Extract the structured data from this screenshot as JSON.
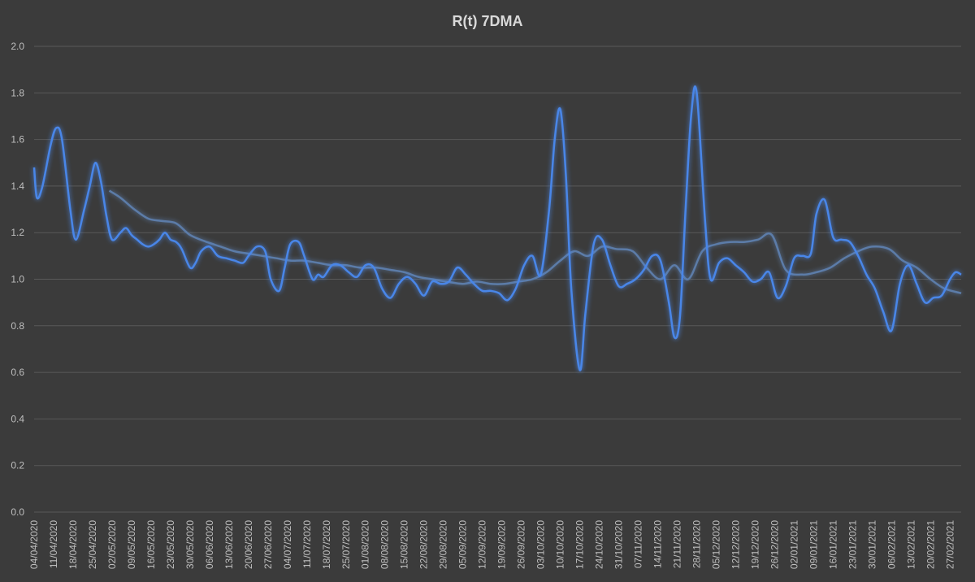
{
  "chart_data": {
    "type": "line",
    "title": "R(t) 7DMA",
    "xlabel": "",
    "ylabel": "",
    "ylim": [
      0,
      2.0
    ],
    "yticks": [
      0.0,
      0.2,
      0.4,
      0.6,
      0.8,
      1.0,
      1.2,
      1.4,
      1.6,
      1.8,
      2.0
    ],
    "ytick_labels": [
      "0.0",
      "0.2",
      "0.4",
      "0.6",
      "0.8",
      "1.0",
      "1.2",
      "1.4",
      "1.6",
      "1.8",
      "2.0"
    ],
    "grid": true,
    "x_start": "04/04/2020",
    "x_end": "03/03/2021",
    "x_tick_labels": [
      "04/04/2020",
      "11/04/2020",
      "18/04/2020",
      "25/04/2020",
      "02/05/2020",
      "09/05/2020",
      "16/05/2020",
      "23/05/2020",
      "30/05/2020",
      "06/06/2020",
      "13/06/2020",
      "20/06/2020",
      "27/06/2020",
      "04/07/2020",
      "11/07/2020",
      "18/07/2020",
      "25/07/2020",
      "01/08/2020",
      "08/08/2020",
      "15/08/2020",
      "22/08/2020",
      "29/08/2020",
      "05/09/2020",
      "12/09/2020",
      "19/09/2020",
      "26/09/2020",
      "03/10/2020",
      "10/10/2020",
      "17/10/2020",
      "24/10/2020",
      "31/10/2020",
      "07/11/2020",
      "14/11/2020",
      "21/11/2020",
      "28/11/2020",
      "05/12/2020",
      "12/12/2020",
      "19/12/2020",
      "26/12/2020",
      "02/01/2021",
      "09/01/2021",
      "16/01/2021",
      "23/01/2021",
      "30/01/2021",
      "06/02/2021",
      "13/02/2021",
      "20/02/2021",
      "27/02/2021"
    ],
    "series": [
      {
        "color": "#4a86e8",
        "x": [
          "04/04/2020",
          "05/04/2020",
          "07/04/2020",
          "10/04/2020",
          "12/04/2020",
          "14/04/2020",
          "17/04/2020",
          "19/04/2020",
          "22/04/2020",
          "24/04/2020",
          "26/04/2020",
          "28/04/2020",
          "30/04/2020",
          "02/05/2020",
          "05/05/2020",
          "07/05/2020",
          "09/05/2020",
          "11/05/2020",
          "13/05/2020",
          "15/05/2020",
          "17/05/2020",
          "19/05/2020",
          "21/05/2020",
          "23/05/2020",
          "25/05/2020",
          "27/05/2020",
          "30/05/2020",
          "01/06/2020",
          "03/06/2020",
          "06/06/2020",
          "09/06/2020",
          "12/06/2020",
          "15/06/2020",
          "18/06/2020",
          "20/06/2020",
          "23/06/2020",
          "26/06/2020",
          "28/06/2020",
          "01/07/2020",
          "03/07/2020",
          "05/07/2020",
          "08/07/2020",
          "10/07/2020",
          "13/07/2020",
          "15/07/2020",
          "17/07/2020",
          "20/07/2020",
          "23/07/2020",
          "26/07/2020",
          "29/07/2020",
          "01/08/2020",
          "04/08/2020",
          "07/08/2020",
          "10/08/2020",
          "13/08/2020",
          "16/08/2020",
          "19/08/2020",
          "22/08/2020",
          "25/08/2020",
          "28/08/2020",
          "31/08/2020",
          "03/09/2020",
          "06/09/2020",
          "09/09/2020",
          "12/09/2020",
          "15/09/2020",
          "18/09/2020",
          "21/09/2020",
          "24/09/2020",
          "27/09/2020",
          "30/09/2020",
          "03/10/2020",
          "06/10/2020",
          "08/10/2020",
          "10/10/2020",
          "12/10/2020",
          "14/10/2020",
          "17/10/2020",
          "19/10/2020",
          "22/10/2020",
          "25/10/2020",
          "28/10/2020",
          "31/10/2020",
          "03/11/2020",
          "06/11/2020",
          "09/11/2020",
          "12/11/2020",
          "15/11/2020",
          "18/11/2020",
          "20/11/2020",
          "22/11/2020",
          "24/11/2020",
          "26/11/2020",
          "28/11/2020",
          "01/12/2020",
          "03/12/2020",
          "06/12/2020",
          "09/12/2020",
          "12/12/2020",
          "15/12/2020",
          "18/12/2020",
          "21/12/2020",
          "24/12/2020",
          "27/12/2020",
          "30/12/2020",
          "02/01/2021",
          "05/01/2021",
          "08/01/2021",
          "10/01/2021",
          "13/01/2021",
          "16/01/2021",
          "19/01/2021",
          "22/01/2021",
          "25/01/2021",
          "28/01/2021",
          "31/01/2021",
          "03/02/2021",
          "06/02/2021",
          "09/02/2021",
          "12/02/2021",
          "15/02/2021",
          "18/02/2021",
          "21/02/2021",
          "24/02/2021",
          "27/02/2021",
          "01/03/2021",
          "03/03/2021"
        ],
        "y": [
          1.48,
          1.35,
          1.4,
          1.58,
          1.65,
          1.6,
          1.3,
          1.17,
          1.3,
          1.4,
          1.5,
          1.42,
          1.27,
          1.17,
          1.2,
          1.22,
          1.19,
          1.17,
          1.15,
          1.14,
          1.15,
          1.17,
          1.2,
          1.17,
          1.16,
          1.13,
          1.05,
          1.07,
          1.12,
          1.14,
          1.1,
          1.09,
          1.08,
          1.07,
          1.1,
          1.14,
          1.12,
          1.0,
          0.95,
          1.05,
          1.15,
          1.16,
          1.1,
          1.0,
          1.02,
          1.01,
          1.06,
          1.06,
          1.03,
          1.01,
          1.06,
          1.05,
          0.96,
          0.92,
          0.98,
          1.01,
          0.98,
          0.93,
          0.99,
          0.98,
          0.99,
          1.05,
          1.02,
          0.98,
          0.95,
          0.95,
          0.94,
          0.91,
          0.96,
          1.06,
          1.1,
          1.02,
          1.3,
          1.6,
          1.73,
          1.45,
          0.95,
          0.61,
          0.85,
          1.15,
          1.17,
          1.06,
          0.97,
          0.98,
          1.0,
          1.04,
          1.1,
          1.08,
          0.9,
          0.75,
          0.84,
          1.3,
          1.7,
          1.8,
          1.25,
          1.0,
          1.07,
          1.09,
          1.06,
          1.03,
          0.99,
          1.0,
          1.03,
          0.92,
          0.97,
          1.09,
          1.1,
          1.11,
          1.28,
          1.34,
          1.18,
          1.17,
          1.16,
          1.1,
          1.02,
          0.96,
          0.86,
          0.78,
          0.98,
          1.06,
          0.98,
          0.9,
          0.92,
          0.93,
          1.0,
          1.03,
          1.02
        ]
      },
      {
        "color": "#5b7ba8",
        "x": [
          "01/05/2020",
          "05/05/2020",
          "10/05/2020",
          "15/05/2020",
          "20/05/2020",
          "25/05/2020",
          "30/05/2020",
          "05/06/2020",
          "10/06/2020",
          "15/06/2020",
          "20/06/2020",
          "25/06/2020",
          "30/06/2020",
          "05/07/2020",
          "10/07/2020",
          "15/07/2020",
          "20/07/2020",
          "25/07/2020",
          "30/07/2020",
          "05/08/2020",
          "10/08/2020",
          "15/08/2020",
          "20/08/2020",
          "25/08/2020",
          "30/08/2020",
          "05/09/2020",
          "10/09/2020",
          "15/09/2020",
          "20/09/2020",
          "25/09/2020",
          "30/09/2020",
          "05/10/2020",
          "10/10/2020",
          "15/10/2020",
          "20/10/2020",
          "25/10/2020",
          "30/10/2020",
          "05/11/2020",
          "10/11/2020",
          "15/11/2020",
          "20/11/2020",
          "25/11/2020",
          "30/11/2020",
          "05/12/2020",
          "10/12/2020",
          "15/12/2020",
          "20/12/2020",
          "25/12/2020",
          "30/12/2020",
          "05/01/2021",
          "10/01/2021",
          "15/01/2021",
          "20/01/2021",
          "25/01/2021",
          "30/01/2021",
          "05/02/2021",
          "10/02/2021",
          "15/02/2021",
          "20/02/2021",
          "25/02/2021",
          "03/03/2021"
        ],
        "y": [
          1.38,
          1.35,
          1.3,
          1.26,
          1.25,
          1.24,
          1.19,
          1.16,
          1.14,
          1.12,
          1.11,
          1.1,
          1.09,
          1.08,
          1.08,
          1.07,
          1.06,
          1.06,
          1.05,
          1.05,
          1.04,
          1.03,
          1.01,
          1.0,
          0.99,
          0.98,
          0.99,
          0.98,
          0.98,
          0.99,
          1.0,
          1.03,
          1.08,
          1.12,
          1.1,
          1.14,
          1.13,
          1.12,
          1.05,
          1.0,
          1.06,
          1.0,
          1.12,
          1.15,
          1.16,
          1.16,
          1.17,
          1.19,
          1.04,
          1.02,
          1.03,
          1.05,
          1.09,
          1.12,
          1.14,
          1.13,
          1.08,
          1.05,
          1.0,
          0.96,
          0.94
        ]
      }
    ],
    "reference_lines": [
      {
        "y": 1.0,
        "color": "#ed7d31"
      },
      {
        "y": 0.6,
        "color": "#d0d0d0"
      }
    ]
  }
}
